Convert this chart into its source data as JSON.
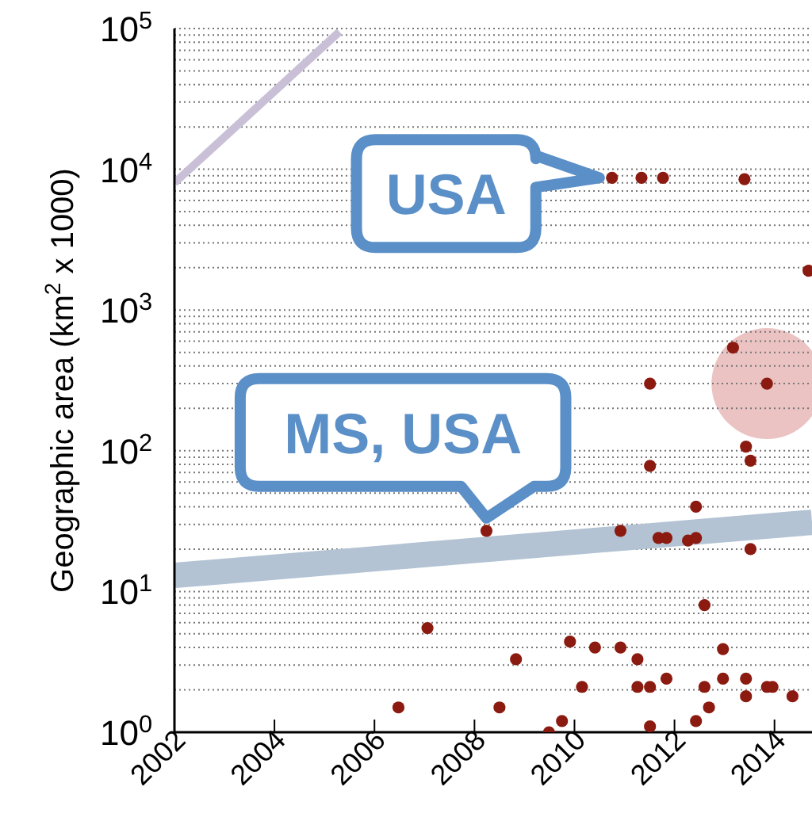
{
  "chart_data": {
    "type": "scatter",
    "ylabel": "Geographic area (km$^{2}$ x 1000)",
    "log": "y",
    "grid": "y",
    "xlim": [
      2002,
      2014.75
    ],
    "xticks": [
      2002,
      2004,
      2006,
      2008,
      2010,
      2012,
      2014
    ],
    "ylim": [
      1,
      100000
    ],
    "yticks": [
      {
        "value": 1,
        "label": "10$^{0}$"
      },
      {
        "value": 2,
        "label": null
      },
      {
        "value": 3,
        "label": null
      },
      {
        "value": 4,
        "label": null
      },
      {
        "value": 5,
        "label": null
      },
      {
        "value": 6,
        "label": null
      },
      {
        "value": 7,
        "label": null
      },
      {
        "value": 8,
        "label": null
      },
      {
        "value": 9,
        "label": null
      },
      {
        "value": 10,
        "label": "10$^{1}$"
      },
      {
        "value": 20,
        "label": null
      },
      {
        "value": 30,
        "label": null
      },
      {
        "value": 40,
        "label": null
      },
      {
        "value": 50,
        "label": null
      },
      {
        "value": 60,
        "label": null
      },
      {
        "value": 70,
        "label": null
      },
      {
        "value": 80,
        "label": null
      },
      {
        "value": 90,
        "label": null
      },
      {
        "value": 100,
        "label": "10$^{2}$"
      },
      {
        "value": 200,
        "label": null
      },
      {
        "value": 300,
        "label": null
      },
      {
        "value": 400,
        "label": null
      },
      {
        "value": 500,
        "label": null
      },
      {
        "value": 600,
        "label": null
      },
      {
        "value": 700,
        "label": null
      },
      {
        "value": 800,
        "label": null
      },
      {
        "value": 900,
        "label": null
      },
      {
        "value": 1000,
        "label": "10$^{3}$"
      },
      {
        "value": 2000,
        "label": null
      },
      {
        "value": 3000,
        "label": null
      },
      {
        "value": 4000,
        "label": null
      },
      {
        "value": 5000,
        "label": null
      },
      {
        "value": 6000,
        "label": null
      },
      {
        "value": 7000,
        "label": null
      },
      {
        "value": 8000,
        "label": null
      },
      {
        "value": 9000,
        "label": null
      },
      {
        "value": 10000,
        "label": "10$^{4}$"
      },
      {
        "value": 20000,
        "label": null
      },
      {
        "value": 30000,
        "label": null
      },
      {
        "value": 40000,
        "label": null
      },
      {
        "value": 50000,
        "label": null
      },
      {
        "value": 60000,
        "label": null
      },
      {
        "value": 70000,
        "label": null
      },
      {
        "value": 80000,
        "label": null
      },
      {
        "value": 90000,
        "label": null
      },
      {
        "value": 100000,
        "label": "10$^{5}$"
      }
    ],
    "annotations": [
      {
        "text": "USA",
        "x": 2010.75,
        "y": 8700
      },
      {
        "text": "MS, USA",
        "x": 2008.24,
        "y": 27
      }
    ],
    "series": [
      {
        "type": "line",
        "marker": "none",
        "color": "#c9c0d8",
        "x": [
          2002,
          2005.3
        ],
        "values": [
          8000,
          95000
        ]
      },
      {
        "type": "line",
        "marker": "none",
        "color": "#b3c3d3",
        "x": [
          2002,
          2014.75
        ],
        "values": [
          13,
          31
        ]
      },
      {
        "marker": "circle",
        "color": "#8b1a10",
        "x": [
          2010.75,
          2011.34,
          2011.77,
          2013.4,
          2014.68,
          2013.17,
          2013.85,
          2011.51,
          2013.43,
          2013.52,
          2011.51,
          2012.43,
          2008.24,
          2010.92,
          2011.68,
          2011.84,
          2012.27,
          2012.43,
          2013.52,
          2012.6,
          2007.06,
          2009.91,
          2010.41,
          2010.92,
          2011.26,
          2012.97,
          2008.83,
          2010.15,
          2011.26,
          2011.51,
          2011.84,
          2012.6,
          2012.97,
          2013.43,
          2013.43,
          2013.85,
          2013.96,
          2014.36,
          2006.48,
          2008.5,
          2012.69,
          2009.49,
          2009.75,
          2011.51,
          2012.43
        ],
        "values": [
          8700,
          8700,
          8700,
          8500,
          1900,
          540,
          300,
          300,
          107,
          85,
          78,
          40,
          27,
          27,
          24,
          24,
          23,
          24,
          20,
          8,
          5.5,
          4.4,
          4,
          4,
          3.3,
          3.9,
          3.3,
          2.1,
          2.1,
          2.1,
          2.4,
          2.1,
          2.4,
          2.4,
          1.8,
          2.1,
          2.1,
          1.8,
          1.5,
          1.5,
          1.5,
          1,
          1.2,
          1.1,
          1.2
        ]
      }
    ]
  }
}
